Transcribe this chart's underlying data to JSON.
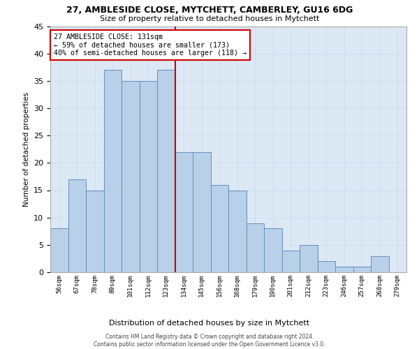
{
  "title_line1": "27, AMBLESIDE CLOSE, MYTCHETT, CAMBERLEY, GU16 6DG",
  "title_line2": "Size of property relative to detached houses in Mytchett",
  "xlabel": "Distribution of detached houses by size in Mytchett",
  "ylabel": "Number of detached properties",
  "categories": [
    "56sqm",
    "67sqm",
    "78sqm",
    "89sqm",
    "101sqm",
    "112sqm",
    "123sqm",
    "134sqm",
    "145sqm",
    "156sqm",
    "168sqm",
    "179sqm",
    "190sqm",
    "201sqm",
    "212sqm",
    "223sqm",
    "246sqm",
    "257sqm",
    "268sqm",
    "279sqm"
  ],
  "values": [
    8,
    17,
    15,
    37,
    35,
    35,
    37,
    22,
    22,
    16,
    15,
    9,
    8,
    4,
    5,
    2,
    1,
    1,
    3,
    0
  ],
  "bar_color": "#b8d0e8",
  "bar_edge_color": "#6090c0",
  "annotation_text": "27 AMBLESIDE CLOSE: 131sqm\n← 59% of detached houses are smaller (173)\n40% of semi-detached houses are larger (118) →",
  "vline_x": 6.5,
  "vline_color": "#cc0000",
  "annotation_box_color": "#ffffff",
  "annotation_box_edge_color": "#cc0000",
  "grid_color": "#c8d8e8",
  "bg_color": "#dce8f4",
  "footer_line1": "Contains HM Land Registry data © Crown copyright and database right 2024.",
  "footer_line2": "Contains public sector information licensed under the Open Government Licence v3.0.",
  "ylim": [
    0,
    45
  ],
  "yticks": [
    0,
    5,
    10,
    15,
    20,
    25,
    30,
    35,
    40,
    45
  ]
}
